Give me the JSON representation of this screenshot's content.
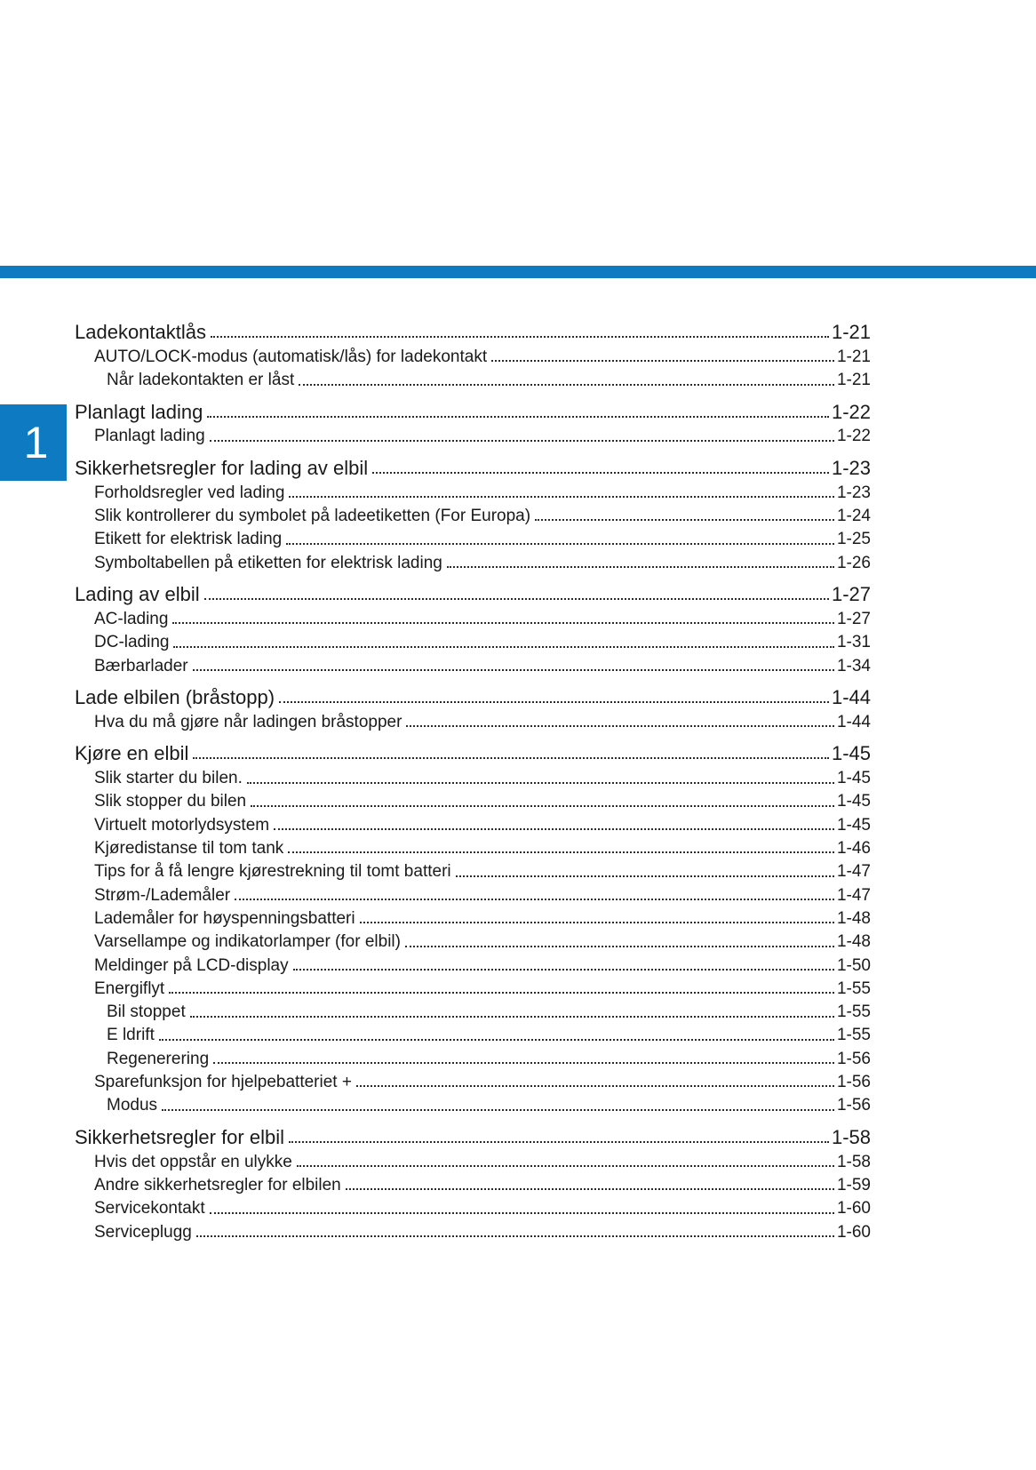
{
  "page": {
    "chapter_tab_number": "1"
  },
  "colors": {
    "accent_blue": "#0d7ac1",
    "text": "#1a1a1a"
  },
  "toc": {
    "entries": [
      {
        "label": "Ladekontaktlås",
        "page": "1-21",
        "level": 1
      },
      {
        "label": "AUTO/LOCK-modus (automatisk/lås) for ladekontakt",
        "page": "1-21",
        "level": 2
      },
      {
        "label": "Når ladekontakten er låst",
        "page": "1-21",
        "level": 3
      },
      {
        "label": "Planlagt lading",
        "page": "1-22",
        "level": 1
      },
      {
        "label": "Planlagt lading",
        "page": "1-22",
        "level": 2
      },
      {
        "label": "Sikkerhetsregler for lading av elbil",
        "page": "1-23",
        "level": 1
      },
      {
        "label": "Forholdsregler ved lading",
        "page": "1-23",
        "level": 2
      },
      {
        "label": "Slik kontrollerer du symbolet på ladeetiketten (For Europa)",
        "page": "1-24",
        "level": 2
      },
      {
        "label": "Etikett for elektrisk lading",
        "page": "1-25",
        "level": 2
      },
      {
        "label": "Symboltabellen på etiketten for elektrisk lading",
        "page": "1-26",
        "level": 2
      },
      {
        "label": "Lading av elbil",
        "page": "1-27",
        "level": 1
      },
      {
        "label": "AC-lading",
        "page": "1-27",
        "level": 2
      },
      {
        "label": "DC-lading",
        "page": "1-31",
        "level": 2
      },
      {
        "label": "Bærbarlader",
        "page": "1-34",
        "level": 2
      },
      {
        "label": "Lade elbilen (bråstopp)",
        "page": "1-44",
        "level": 1
      },
      {
        "label": "Hva du må gjøre når ladingen bråstopper",
        "page": "1-44",
        "level": 2
      },
      {
        "label": "Kjøre en elbil",
        "page": "1-45",
        "level": 1
      },
      {
        "label": "Slik starter du bilen.",
        "page": "1-45",
        "level": 2
      },
      {
        "label": "Slik stopper du bilen",
        "page": "1-45",
        "level": 2
      },
      {
        "label": "Virtuelt motorlydsystem",
        "page": "1-45",
        "level": 2
      },
      {
        "label": "Kjøredistanse til tom tank",
        "page": "1-46",
        "level": 2
      },
      {
        "label": "Tips for å få lengre kjørestrekning til tomt batteri",
        "page": "1-47",
        "level": 2
      },
      {
        "label": "Strøm-/Lademåler",
        "page": "1-47",
        "level": 2
      },
      {
        "label": "Lademåler for høyspenningsbatteri",
        "page": "1-48",
        "level": 2
      },
      {
        "label": "Varsellampe og indikatorlamper (for elbil)",
        "page": "1-48",
        "level": 2
      },
      {
        "label": "Meldinger på LCD-display",
        "page": "1-50",
        "level": 2
      },
      {
        "label": "Energiflyt",
        "page": "1-55",
        "level": 2
      },
      {
        "label": "Bil stoppet",
        "page": "1-55",
        "level": 3
      },
      {
        "label": "E ldrift",
        "page": "1-55",
        "level": 3
      },
      {
        "label": "Regenerering",
        "page": "1-56",
        "level": 3
      },
      {
        "label": "Sparefunksjon for hjelpebatteriet +",
        "page": "1-56",
        "level": 2
      },
      {
        "label": "Modus",
        "page": "1-56",
        "level": 3
      },
      {
        "label": "Sikkerhetsregler for elbil",
        "page": "1-58",
        "level": 1
      },
      {
        "label": "Hvis det oppstår en ulykke",
        "page": "1-58",
        "level": 2
      },
      {
        "label": "Andre sikkerhetsregler for elbilen",
        "page": "1-59",
        "level": 2
      },
      {
        "label": "Servicekontakt",
        "page": "1-60",
        "level": 2
      },
      {
        "label": "Serviceplugg",
        "page": "1-60",
        "level": 2
      }
    ]
  }
}
